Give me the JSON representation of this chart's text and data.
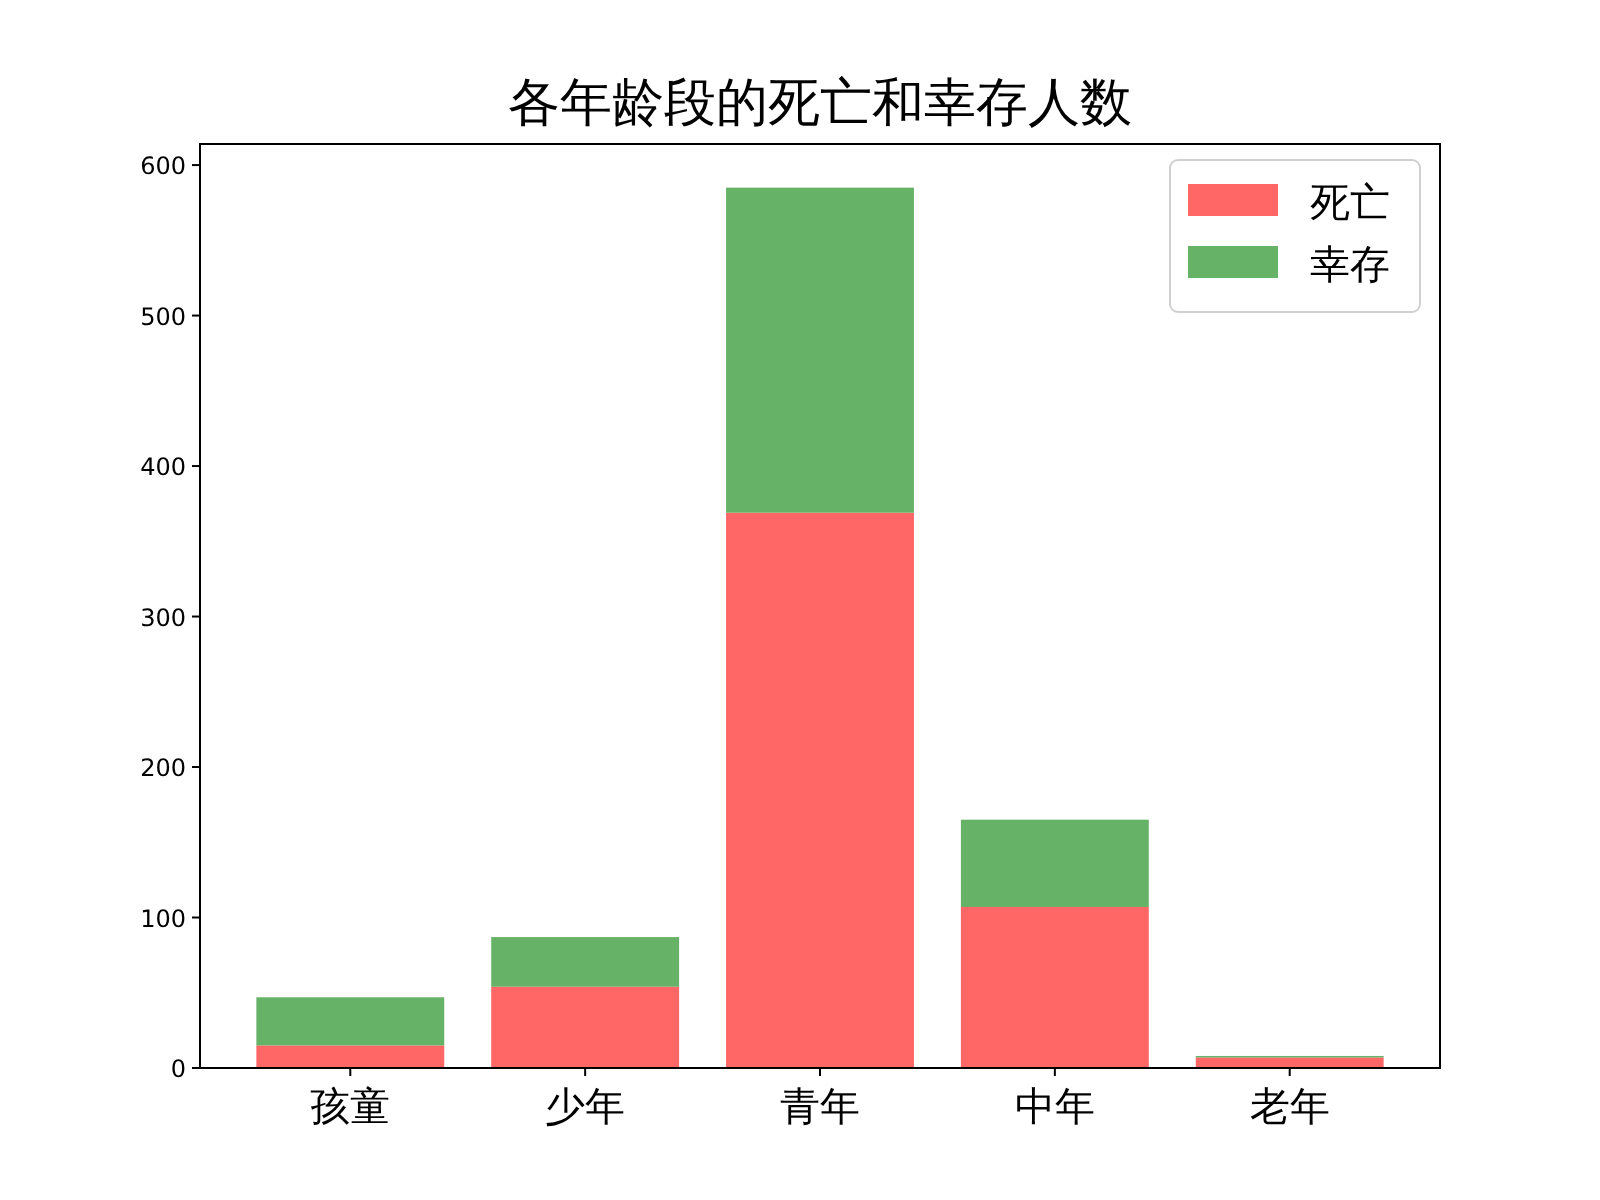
{
  "chart_data": {
    "type": "bar",
    "title": "各年龄段的死亡和幸存人数",
    "stacked": true,
    "categories": [
      "孩童",
      "少年",
      "青年",
      "中年",
      "老年"
    ],
    "series": [
      {
        "name": "死亡",
        "color": "#ff6666",
        "values": [
          15,
          54,
          369,
          107,
          7
        ]
      },
      {
        "name": "幸存",
        "color": "#66b266",
        "values": [
          32,
          33,
          216,
          58,
          1
        ]
      }
    ],
    "ylim": [
      0,
      614
    ],
    "yticks": [
      0,
      100,
      200,
      300,
      400,
      500,
      600
    ],
    "legend": "top right",
    "grid": false
  }
}
